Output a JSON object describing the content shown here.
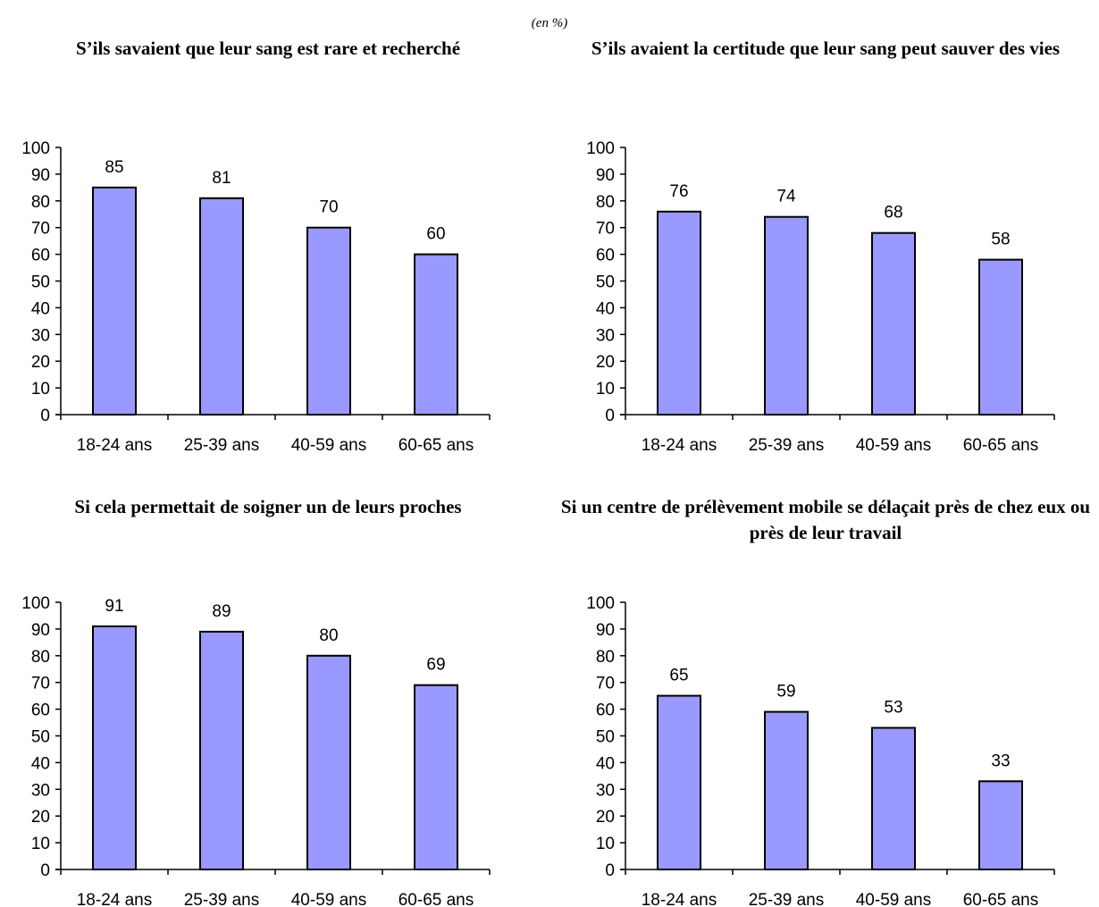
{
  "unit_note": "(en %)",
  "chart_data": [
    {
      "type": "bar",
      "title": "S’ils savaient que leur sang est rare et recherché",
      "categories": [
        "18-24 ans",
        "25-39 ans",
        "40-59 ans",
        "60-65 ans"
      ],
      "values": [
        85,
        81,
        70,
        60
      ],
      "data_labels": [
        "85",
        "81",
        "70",
        "60"
      ],
      "yticks": [
        "0",
        "10",
        "20",
        "30",
        "40",
        "50",
        "60",
        "70",
        "80",
        "90",
        "100"
      ],
      "ylim": [
        0,
        100
      ],
      "bar_color": "#9999ff",
      "grid": false
    },
    {
      "type": "bar",
      "title": "S’ils avaient la certitude que leur sang peut sauver des vies",
      "categories": [
        "18-24 ans",
        "25-39 ans",
        "40-59 ans",
        "60-65 ans"
      ],
      "values": [
        76,
        74,
        68,
        58
      ],
      "data_labels": [
        "76",
        "74",
        "68",
        "58"
      ],
      "yticks": [
        "0",
        "10",
        "20",
        "30",
        "40",
        "50",
        "60",
        "70",
        "80",
        "90",
        "100"
      ],
      "ylim": [
        0,
        100
      ],
      "bar_color": "#9999ff",
      "grid": false
    },
    {
      "type": "bar",
      "title": "Si cela permettait de soigner un de leurs proches",
      "categories": [
        "18-24 ans",
        "25-39 ans",
        "40-59 ans",
        "60-65 ans"
      ],
      "values": [
        91,
        89,
        80,
        69
      ],
      "data_labels": [
        "91",
        "89",
        "80",
        "69"
      ],
      "yticks": [
        "0",
        "10",
        "20",
        "30",
        "40",
        "50",
        "60",
        "70",
        "80",
        "90",
        "100"
      ],
      "ylim": [
        0,
        100
      ],
      "bar_color": "#9999ff",
      "grid": false
    },
    {
      "type": "bar",
      "title": "Si un centre de prélèvement mobile se délaçait près de chez eux ou près de leur travail",
      "categories": [
        "18-24 ans",
        "25-39 ans",
        "40-59 ans",
        "60-65 ans"
      ],
      "values": [
        65,
        59,
        53,
        33
      ],
      "data_labels": [
        "65",
        "59",
        "53",
        "33"
      ],
      "yticks": [
        "0",
        "10",
        "20",
        "30",
        "40",
        "50",
        "60",
        "70",
        "80",
        "90",
        "100"
      ],
      "ylim": [
        0,
        100
      ],
      "bar_color": "#9999ff",
      "grid": false
    }
  ]
}
